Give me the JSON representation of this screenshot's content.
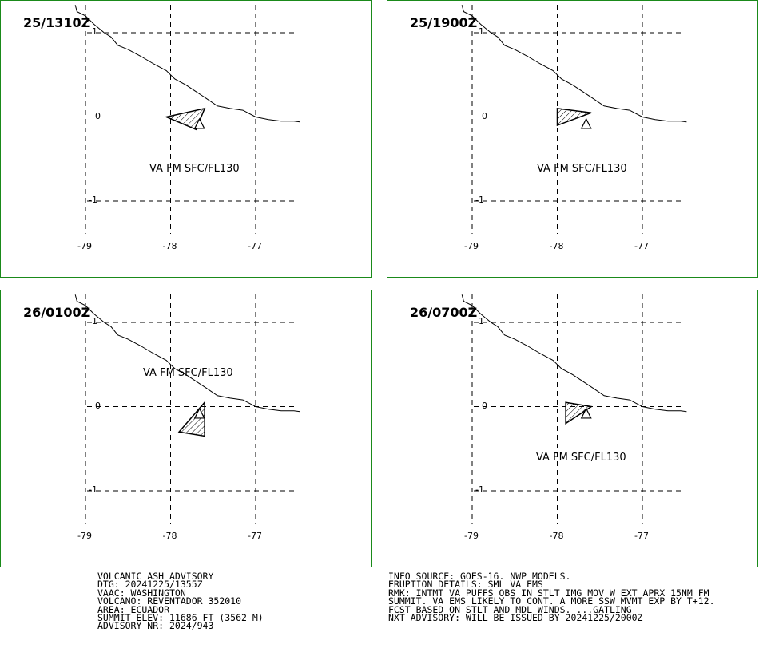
{
  "panels": [
    {
      "time": "25/1310Z",
      "label": "VA FM SFC/FL130",
      "ash": [
        [
          -78.05,
          0.0
        ],
        [
          -77.6,
          0.1
        ],
        [
          -77.7,
          -0.15
        ]
      ]
    },
    {
      "time": "25/1900Z",
      "label": "VA FM SFC/FL130",
      "ash": [
        [
          -78.0,
          0.1
        ],
        [
          -77.6,
          0.05
        ],
        [
          -78.0,
          -0.1
        ]
      ]
    },
    {
      "time": "26/0100Z",
      "label": "VA FM SFC/FL130",
      "ash": [
        [
          -77.6,
          0.05
        ],
        [
          -77.9,
          -0.3
        ],
        [
          -77.6,
          -0.35
        ]
      ]
    },
    {
      "time": "26/0700Z",
      "label": "VA FM SFC/FL130",
      "ash": [
        [
          -77.9,
          0.05
        ],
        [
          -77.6,
          0.0
        ],
        [
          -77.9,
          -0.2
        ]
      ]
    }
  ],
  "axis": {
    "lon_ticks": [
      "-79",
      "-78",
      "-77"
    ],
    "lat_ticks": [
      "1",
      "0",
      "-1"
    ]
  },
  "volcano": {
    "lon": -77.66,
    "lat": -0.08
  },
  "coastline": [
    [
      -79.12,
      1.33
    ],
    [
      -79.1,
      1.25
    ],
    [
      -79.0,
      1.2
    ],
    [
      -78.9,
      1.1
    ],
    [
      -78.78,
      1.0
    ],
    [
      -78.7,
      0.95
    ],
    [
      -78.62,
      0.85
    ],
    [
      -78.5,
      0.8
    ],
    [
      -78.35,
      0.72
    ],
    [
      -78.2,
      0.63
    ],
    [
      -78.05,
      0.55
    ],
    [
      -77.95,
      0.45
    ],
    [
      -77.82,
      0.38
    ],
    [
      -77.7,
      0.3
    ],
    [
      -77.58,
      0.22
    ],
    [
      -77.45,
      0.13
    ],
    [
      -77.3,
      0.1
    ],
    [
      -77.15,
      0.08
    ],
    [
      -77.0,
      0.0
    ],
    [
      -76.85,
      -0.03
    ],
    [
      -76.7,
      -0.05
    ],
    [
      -76.55,
      -0.05
    ],
    [
      -76.48,
      -0.06
    ]
  ],
  "advisory_left": [
    "VOLCANIC ASH ADVISORY",
    "DTG: 20241225/1355Z",
    "VAAC: WASHINGTON",
    "VOLCANO: REVENTADOR 352010",
    "AREA: ECUADOR",
    "SUMMIT ELEV: 11686 FT (3562 M)",
    "ADVISORY NR: 2024/943"
  ],
  "advisory_right": [
    "INFO SOURCE: GOES-16. NWP MODELS.",
    "ERUPTION DETAILS: SML VA EMS",
    "RMK: INTMT VA PUFFS OBS IN STLT IMG MOV W EXT APRX 15NM FM",
    "SUMMIT. VA EMS LIKELY TO CONT. A MORE SSW MVMT EXP BY T+12.",
    "FCST BASED ON STLT AND MDL WINDS. ...GATLING",
    "NXT ADVISORY: WILL BE ISSUED BY 20241225/2000Z"
  ]
}
